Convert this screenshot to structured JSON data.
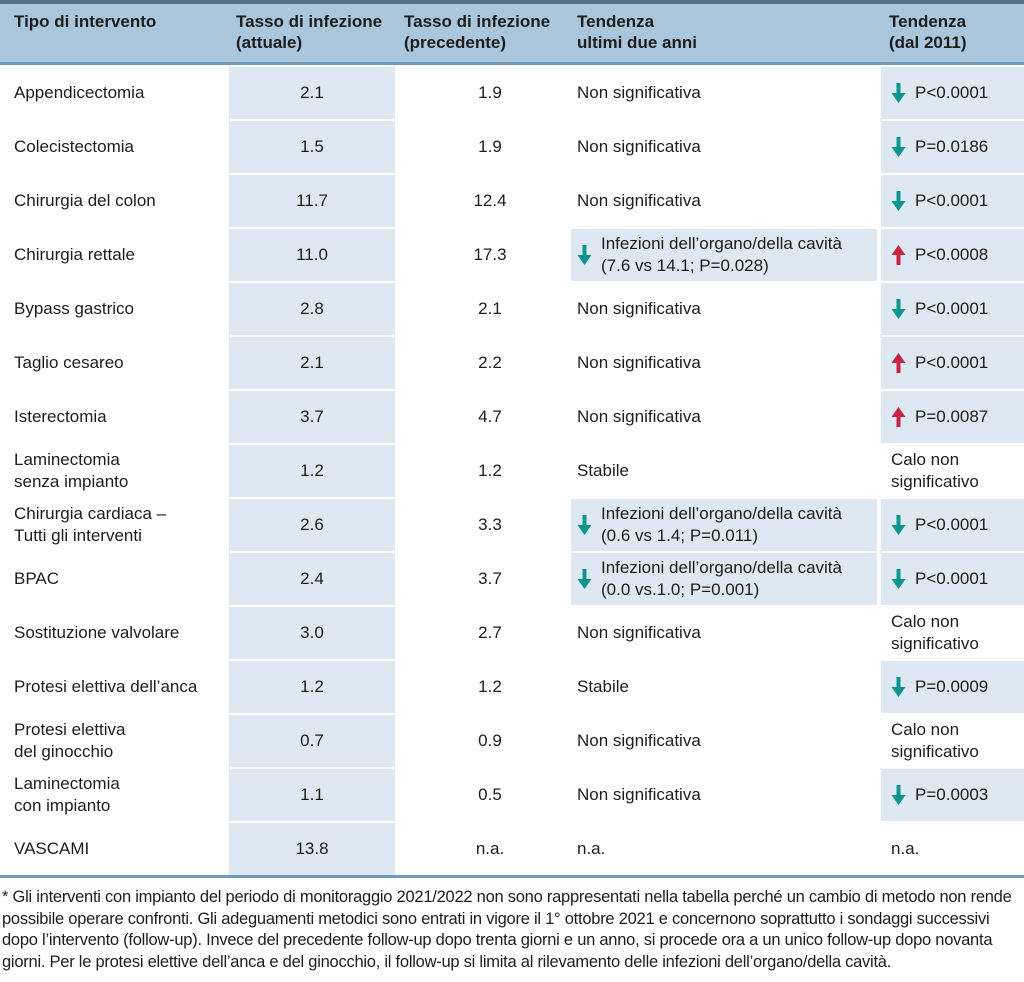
{
  "colors": {
    "header_bg": "#a9c6dc",
    "top_rule": "#54708c",
    "mid_rule": "#6f9abf",
    "cell_bg": "#dde8f2",
    "decrease_arrow": "#0e968e",
    "increase_arrow": "#c72343",
    "text": "#1d1d1b"
  },
  "table": {
    "columns": [
      {
        "label": "Tipo di intervento"
      },
      {
        "label": "Tasso di infezione\n(attuale)"
      },
      {
        "label": "Tasso di infezione\n(precedente)"
      },
      {
        "label": "Tendenza\nultimi due anni"
      },
      {
        "label": "Tendenza\n(dal 2011)"
      }
    ],
    "rows": [
      {
        "intervento": "Appendicectomia",
        "attuale": "2.1",
        "precedente": "1.9",
        "tendenza_due_anni": {
          "arrow": null,
          "text": "Non significativa",
          "highlight": false
        },
        "tendenza_dal_2011": {
          "arrow": "down",
          "text": "P<0.0001",
          "highlight": true
        }
      },
      {
        "intervento": "Colecistectomia",
        "attuale": "1.5",
        "precedente": "1.9",
        "tendenza_due_anni": {
          "arrow": null,
          "text": "Non significativa",
          "highlight": false
        },
        "tendenza_dal_2011": {
          "arrow": "down",
          "text": "P=0.0186",
          "highlight": true
        }
      },
      {
        "intervento": "Chirurgia del colon",
        "attuale": "11.7",
        "precedente": "12.4",
        "tendenza_due_anni": {
          "arrow": null,
          "text": "Non significativa",
          "highlight": false
        },
        "tendenza_dal_2011": {
          "arrow": "down",
          "text": "P<0.0001",
          "highlight": true
        }
      },
      {
        "intervento": "Chirurgia rettale",
        "attuale": "11.0",
        "precedente": "17.3",
        "tendenza_due_anni": {
          "arrow": "down",
          "text": "Infezioni dell’organo/della cavità\n(7.6 vs 14.1; P=0.028)",
          "highlight": true
        },
        "tendenza_dal_2011": {
          "arrow": "up",
          "text": "P<0.0008",
          "highlight": true
        }
      },
      {
        "intervento": "Bypass gastrico",
        "attuale": "2.8",
        "precedente": "2.1",
        "tendenza_due_anni": {
          "arrow": null,
          "text": "Non significativa",
          "highlight": false
        },
        "tendenza_dal_2011": {
          "arrow": "down",
          "text": "P<0.0001",
          "highlight": true
        }
      },
      {
        "intervento": "Taglio cesareo",
        "attuale": "2.1",
        "precedente": "2.2",
        "tendenza_due_anni": {
          "arrow": null,
          "text": "Non significativa",
          "highlight": false
        },
        "tendenza_dal_2011": {
          "arrow": "up",
          "text": "P<0.0001",
          "highlight": true
        }
      },
      {
        "intervento": "Isterectomia",
        "attuale": "3.7",
        "precedente": "4.7",
        "tendenza_due_anni": {
          "arrow": null,
          "text": "Non significativa",
          "highlight": false
        },
        "tendenza_dal_2011": {
          "arrow": "up",
          "text": "P=0.0087",
          "highlight": true
        }
      },
      {
        "intervento": "Laminectomia\nsenza impianto",
        "attuale": "1.2",
        "precedente": "1.2",
        "tendenza_due_anni": {
          "arrow": null,
          "text": "Stabile",
          "highlight": false
        },
        "tendenza_dal_2011": {
          "arrow": null,
          "text": "Calo non\nsignificativo",
          "highlight": false
        }
      },
      {
        "intervento": "Chirurgia cardiaca –\nTutti gli interventi",
        "attuale": "2.6",
        "precedente": "3.3",
        "tendenza_due_anni": {
          "arrow": "down",
          "text": "Infezioni dell’organo/della cavità\n(0.6 vs 1.4; P=0.011)",
          "highlight": true
        },
        "tendenza_dal_2011": {
          "arrow": "down",
          "text": "P<0.0001",
          "highlight": true
        }
      },
      {
        "intervento": "BPAC",
        "attuale": "2.4",
        "precedente": "3.7",
        "tendenza_due_anni": {
          "arrow": "down",
          "text": "Infezioni dell’organo/della cavità\n(0.0 vs.1.0; P=0.001)",
          "highlight": true
        },
        "tendenza_dal_2011": {
          "arrow": "down",
          "text": "P<0.0001",
          "highlight": true
        }
      },
      {
        "intervento": "Sostituzione valvolare",
        "attuale": "3.0",
        "precedente": "2.7",
        "tendenza_due_anni": {
          "arrow": null,
          "text": "Non significativa",
          "highlight": false
        },
        "tendenza_dal_2011": {
          "arrow": null,
          "text": "Calo non\nsignificativo",
          "highlight": false
        }
      },
      {
        "intervento": "Protesi elettiva dell’anca",
        "attuale": "1.2",
        "precedente": "1.2",
        "tendenza_due_anni": {
          "arrow": null,
          "text": "Stabile",
          "highlight": false
        },
        "tendenza_dal_2011": {
          "arrow": "down",
          "text": "P=0.0009",
          "highlight": true
        }
      },
      {
        "intervento": "Protesi elettiva\ndel ginocchio",
        "attuale": "0.7",
        "precedente": "0.9",
        "tendenza_due_anni": {
          "arrow": null,
          "text": "Non significativa",
          "highlight": false
        },
        "tendenza_dal_2011": {
          "arrow": null,
          "text": "Calo non\nsignificativo",
          "highlight": false
        }
      },
      {
        "intervento": "Laminectomia\ncon impianto",
        "attuale": "1.1",
        "precedente": "0.5",
        "tendenza_due_anni": {
          "arrow": null,
          "text": "Non significativa",
          "highlight": false
        },
        "tendenza_dal_2011": {
          "arrow": "down",
          "text": "P=0.0003",
          "highlight": true
        }
      },
      {
        "intervento": "VASCAMI",
        "attuale": "13.8",
        "precedente": "n.a.",
        "tendenza_due_anni": {
          "arrow": null,
          "text": "n.a.",
          "highlight": false
        },
        "tendenza_dal_2011": {
          "arrow": null,
          "text": "n.a.",
          "highlight": false
        }
      }
    ]
  },
  "footnote": "* Gli interventi con impianto del periodo di monitoraggio 2021/2022 non sono rappresentati nella tabella perché un cambio di metodo non rende possibile operare confronti. Gli adeguamenti metodici sono entrati in vigore il 1° ottobre 2021 e concernono soprattutto i sondaggi successivi dopo l’intervento (follow-up). Invece del precedente follow-up dopo trenta giorni e un anno, si procede ora a un unico follow-up dopo novanta giorni. Per le protesi elettive dell’anca e del ginocchio, il follow-up si limita al rilevamento delle infezioni dell’organo/della cavità."
}
